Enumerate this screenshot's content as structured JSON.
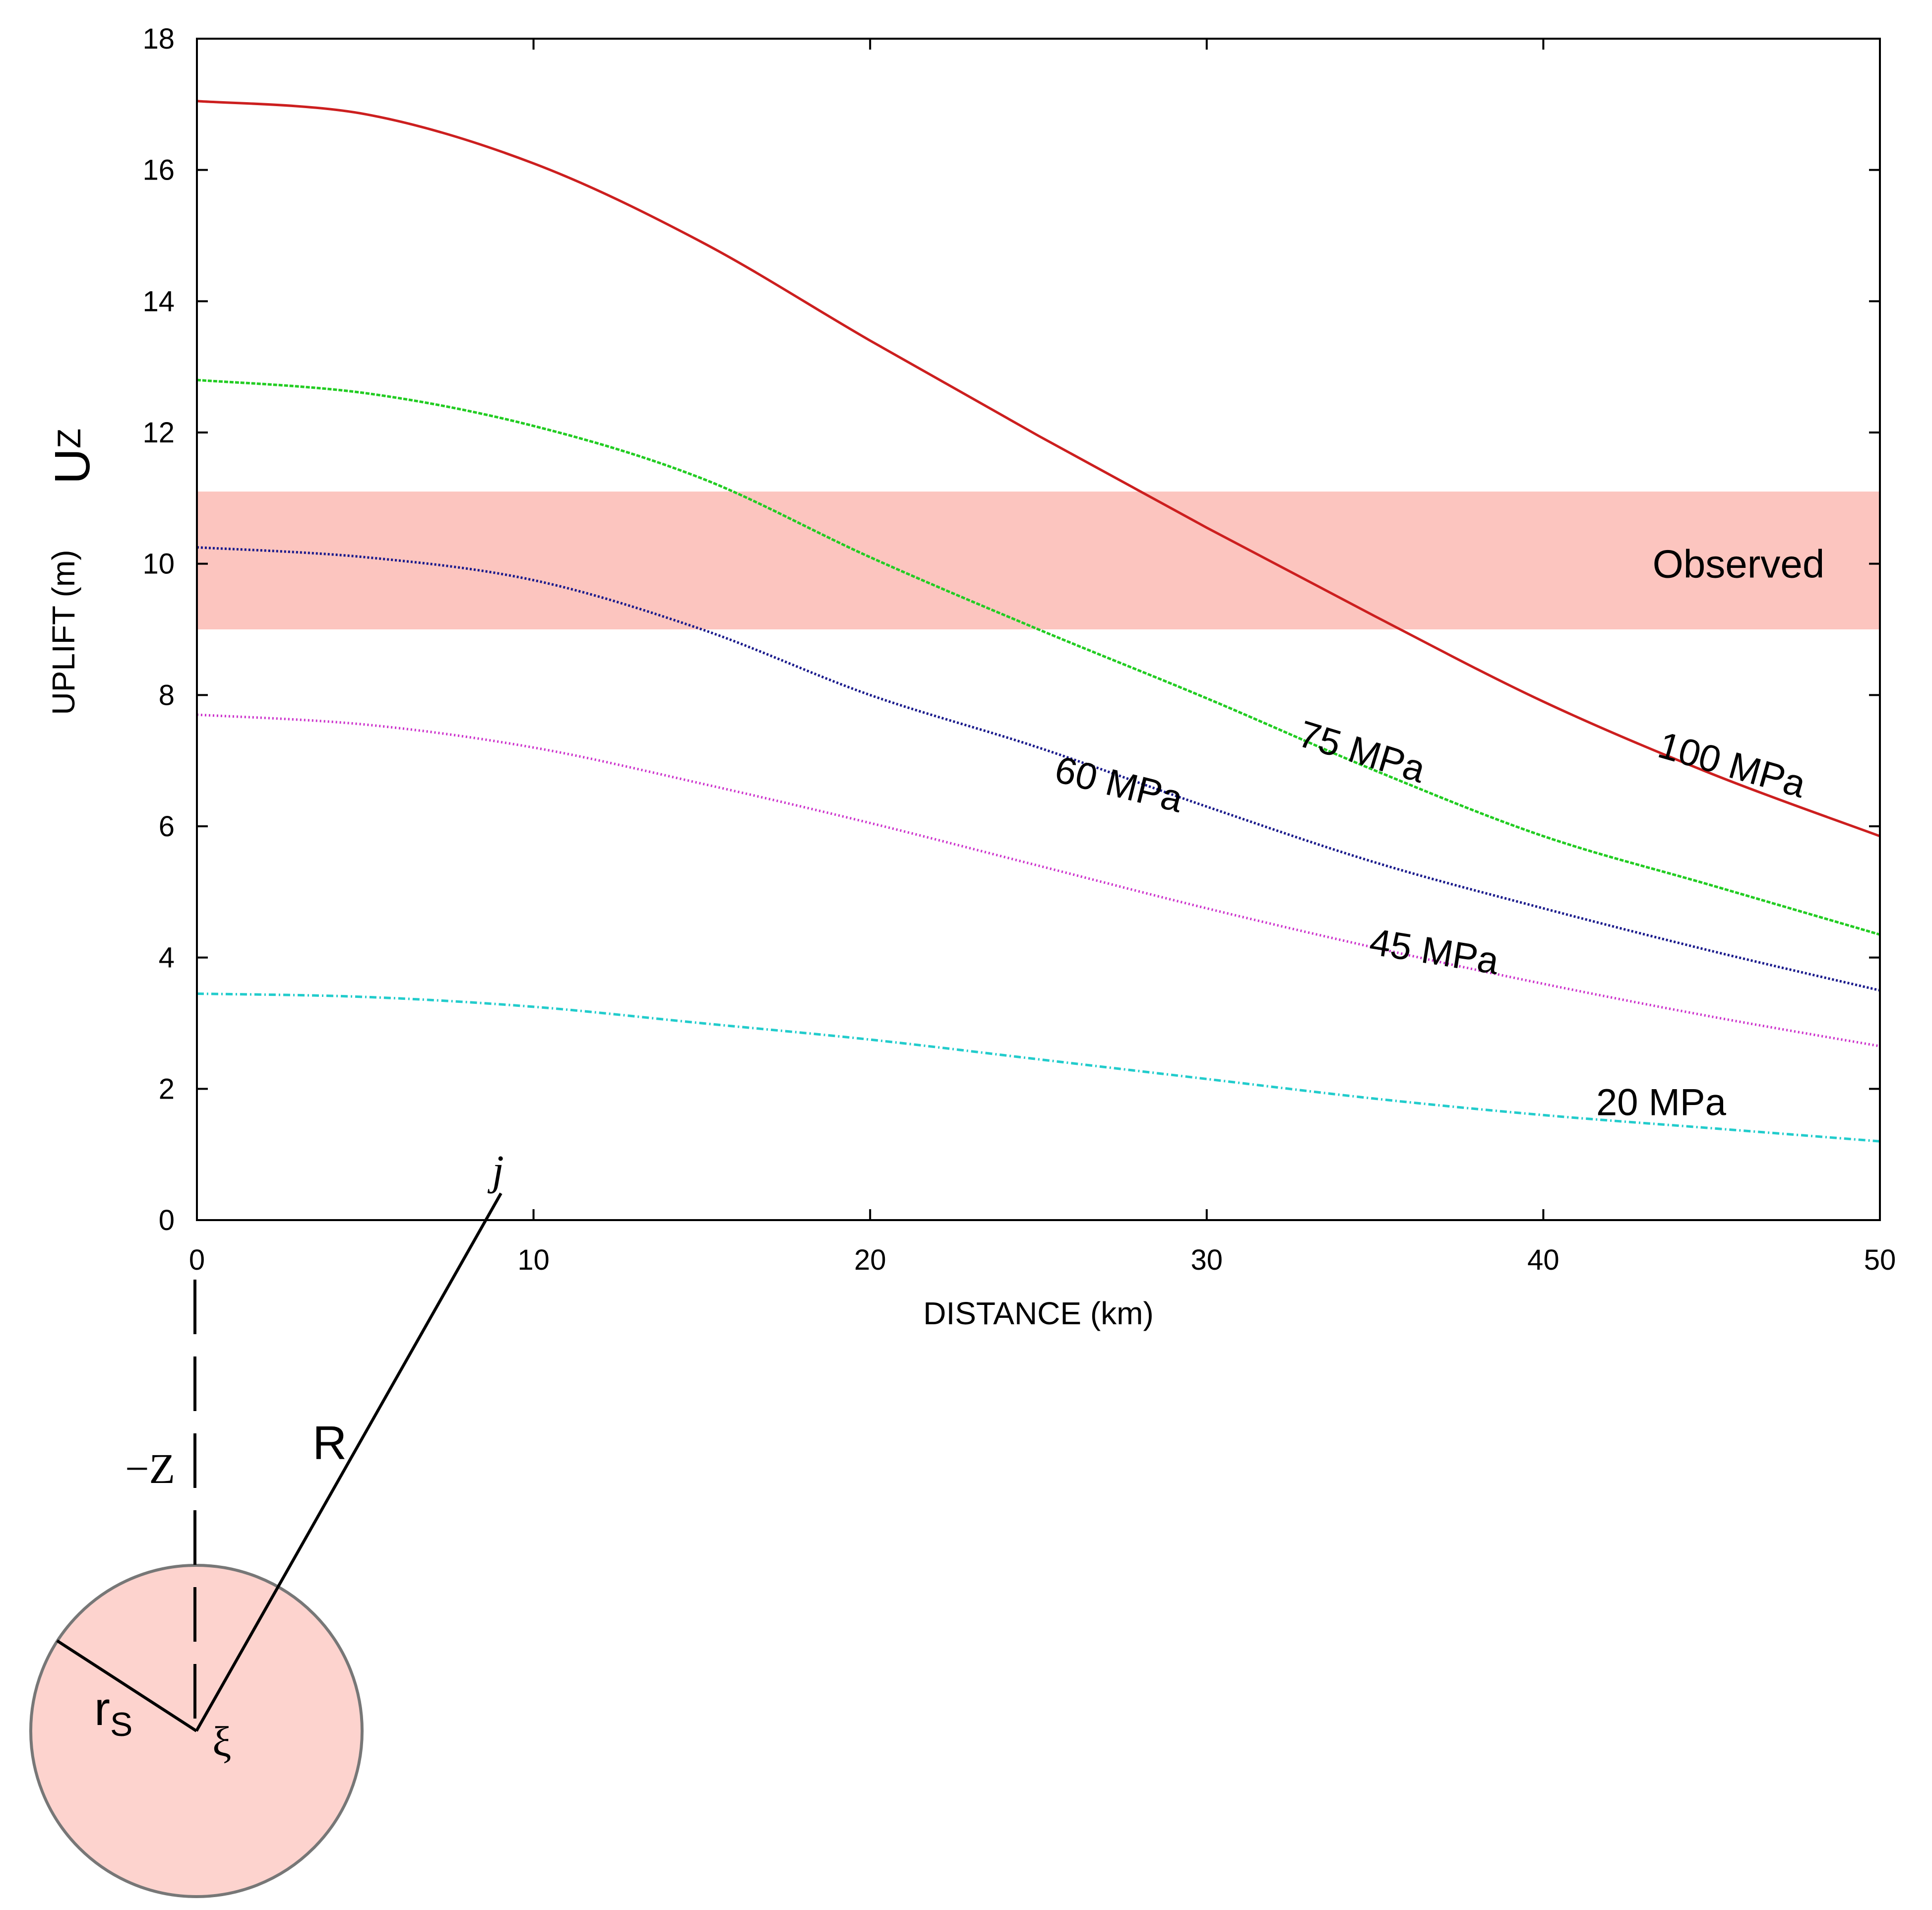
{
  "chart_data": {
    "type": "line",
    "title": "",
    "xlabel": "DISTANCE (km)",
    "ylabel": "UPLIFT (m)",
    "ylabel_symbol": {
      "main": "U",
      "sub": "Z"
    },
    "xlim": [
      0,
      50
    ],
    "ylim": [
      0,
      18
    ],
    "xticks": [
      0,
      10,
      20,
      30,
      40,
      50
    ],
    "yticks": [
      0,
      2,
      4,
      6,
      8,
      10,
      12,
      14,
      16,
      18
    ],
    "grid": false,
    "observed_band": {
      "label": "Observed",
      "y_range": [
        9.0,
        11.1
      ],
      "color": "#fcc5bf"
    },
    "x": [
      0,
      5,
      10,
      15,
      20,
      25,
      30,
      35,
      40,
      45,
      50
    ],
    "series": [
      {
        "name": "100 MPa",
        "color": "#cc1f1f",
        "dash": "",
        "values": [
          17.05,
          16.85,
          16.1,
          14.9,
          13.4,
          11.95,
          10.55,
          9.2,
          7.9,
          6.8,
          5.85
        ]
      },
      {
        "name": "75 MPa",
        "color": "#22cc22",
        "dash": "8,3",
        "values": [
          12.8,
          12.6,
          12.1,
          11.3,
          10.1,
          9.0,
          7.95,
          6.85,
          5.85,
          5.1,
          4.35
        ]
      },
      {
        "name": "60 MPa",
        "color": "#1a1a8c",
        "dash": "4,4",
        "values": [
          10.25,
          10.1,
          9.75,
          9.0,
          8.0,
          7.2,
          6.3,
          5.45,
          4.75,
          4.1,
          3.5
        ]
      },
      {
        "name": "45 MPa",
        "color": "#cc33cc",
        "dash": "3,5",
        "values": [
          7.7,
          7.55,
          7.2,
          6.65,
          6.05,
          5.4,
          4.75,
          4.15,
          3.6,
          3.1,
          2.65
        ]
      },
      {
        "name": "20 MPa",
        "color": "#22cccc",
        "dash": "14,6,3,6",
        "values": [
          3.45,
          3.4,
          3.25,
          3.0,
          2.75,
          2.45,
          2.15,
          1.85,
          1.6,
          1.4,
          1.2
        ]
      }
    ],
    "curve_labels": [
      {
        "series": "100 MPa",
        "text": "100 MPa",
        "x": 45.5,
        "y": 6.75
      },
      {
        "series": "75 MPa",
        "text": "75 MPa",
        "x": 34.5,
        "y": 6.95
      },
      {
        "series": "60 MPa",
        "text": "60 MPa",
        "x": 27.3,
        "y": 6.45
      },
      {
        "series": "45 MPa",
        "text": "45 MPa",
        "x": 36.7,
        "y": 3.9
      },
      {
        "series": "20 MPa",
        "text": "20 MPa",
        "x": 43.5,
        "y": 1.6
      }
    ]
  },
  "diagram": {
    "point_label": "j",
    "distance_label": "R",
    "depth_label": "−Z",
    "radius_label": "r",
    "radius_sub": "S",
    "source_label": "ξ",
    "source_color": "#fdd3ce"
  }
}
